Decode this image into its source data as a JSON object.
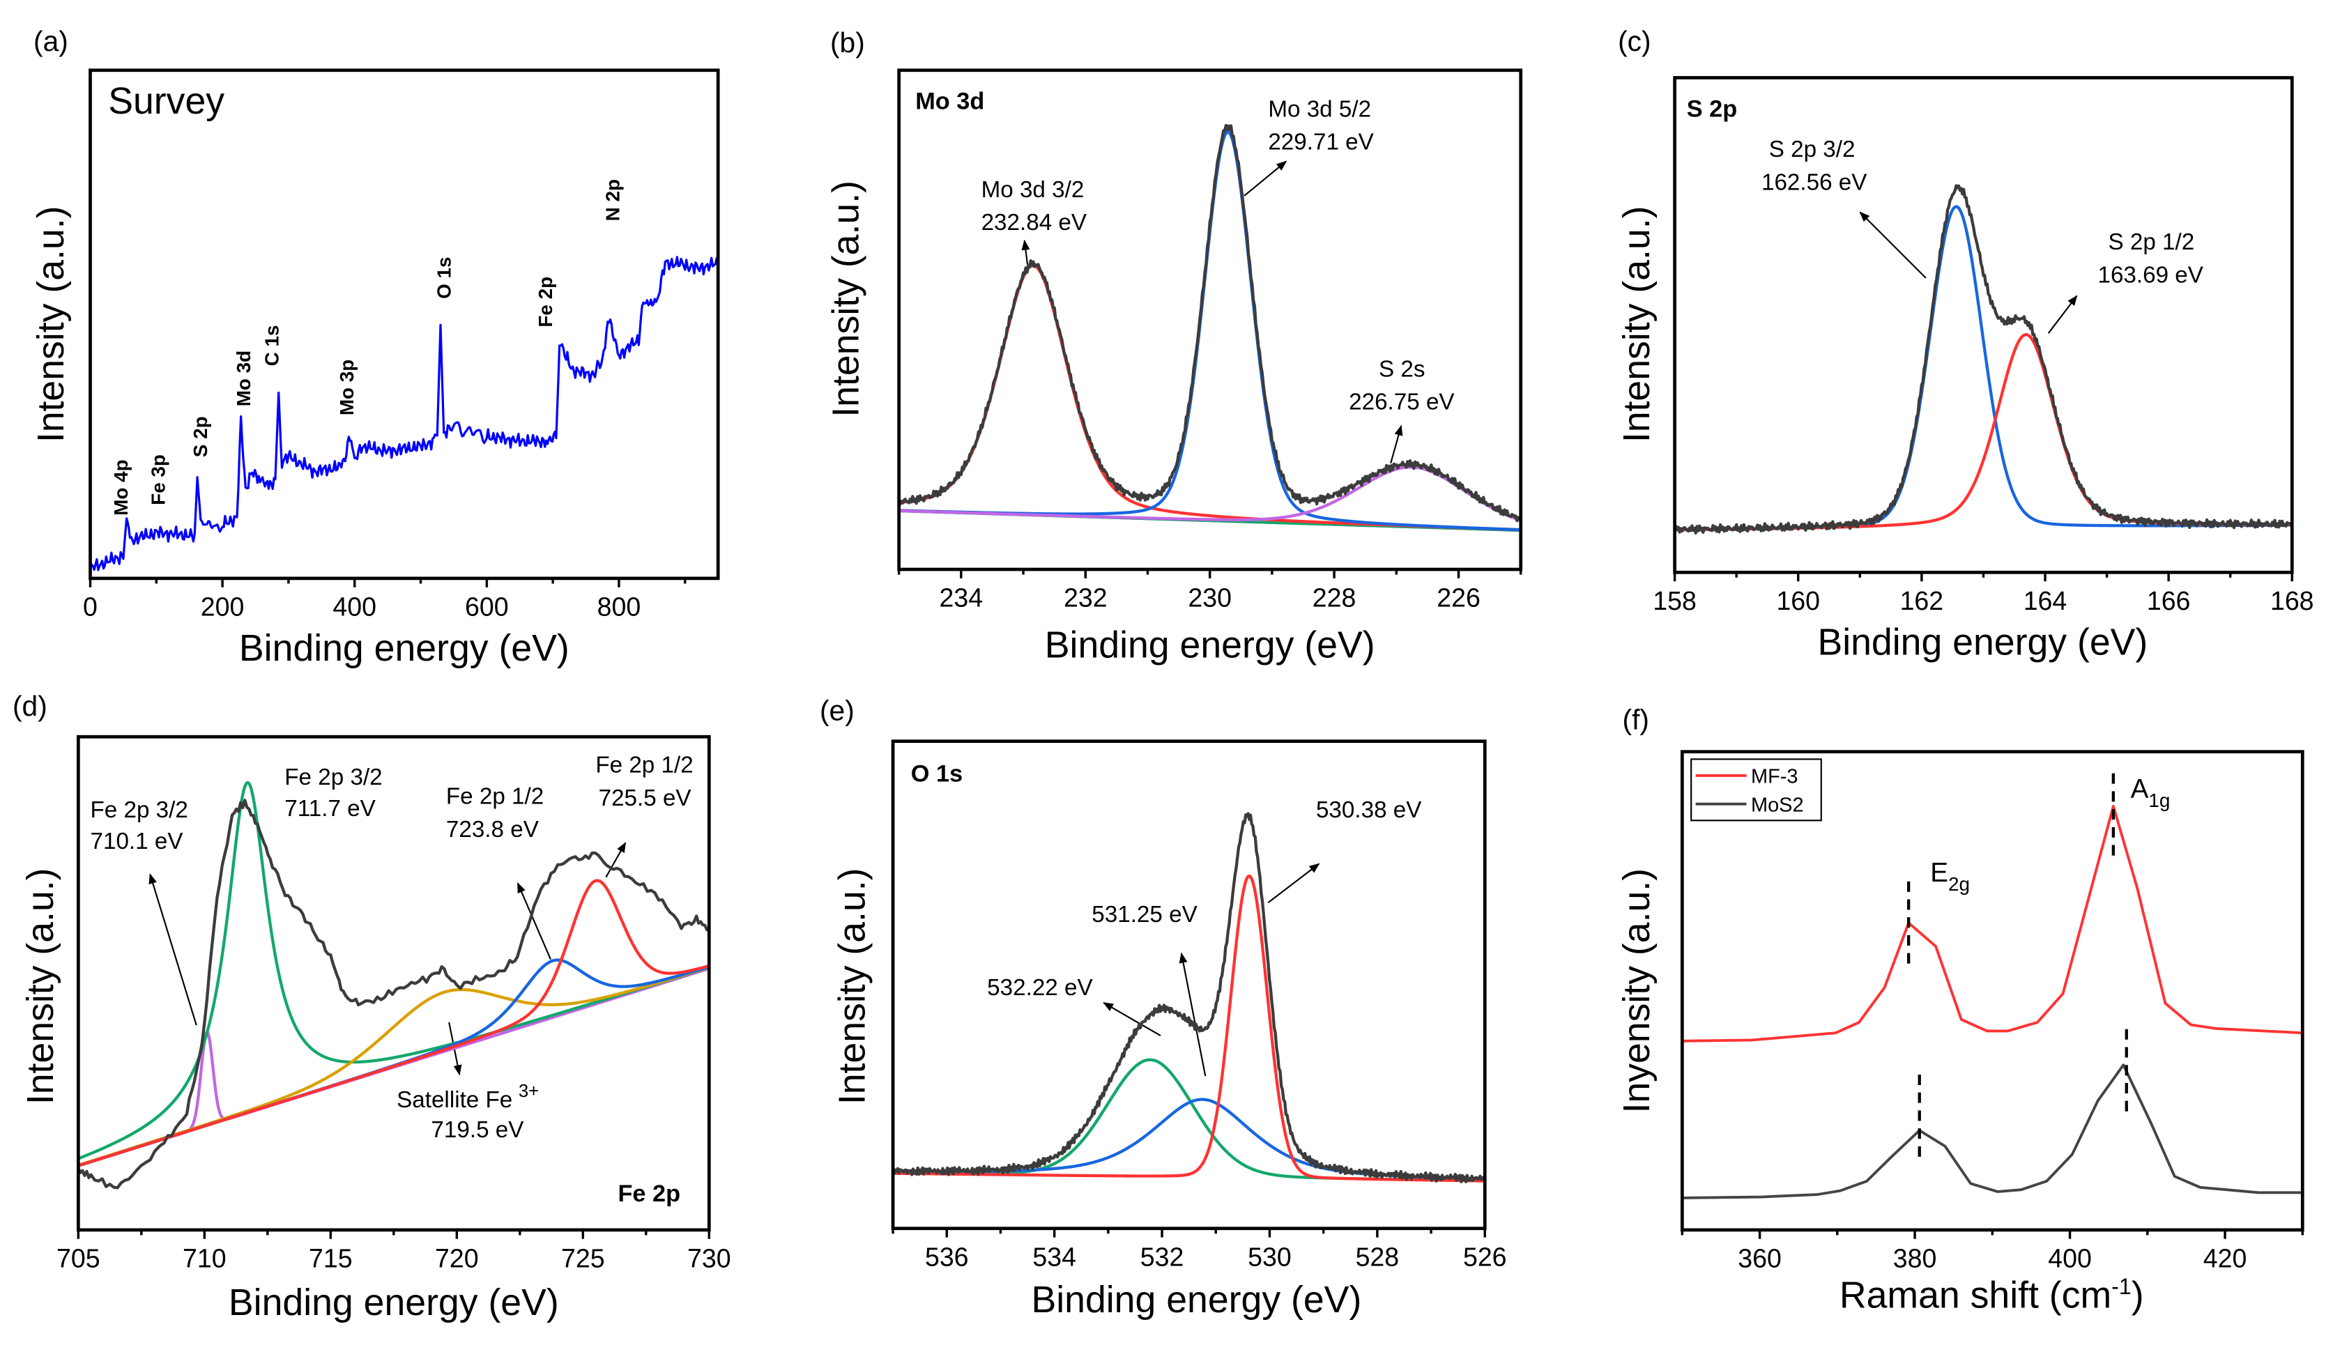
{
  "colors": {
    "envelope": "#3c3c3c",
    "red": "#ff3333",
    "blue": "#1766e0",
    "green": "#12a86a",
    "purple": "#c266e6",
    "orange": "#d9a000",
    "survey": "#0000ff",
    "mos2": "#444444"
  },
  "chart_data": [
    {
      "panel": "(a)",
      "type": "line",
      "title": "Survey",
      "xlabel": "Binding energy (eV)",
      "ylabel": "Intensity (a.u.)",
      "xlim": [
        0,
        950
      ],
      "ylim": [
        0,
        100
      ],
      "xticks": [
        0,
        200,
        400,
        600,
        800
      ],
      "xminor": 100,
      "peak_labels": [
        "Mo 4p",
        "Fe 3p",
        "S 2p",
        "Mo 3d",
        "C 1s",
        "Mo 3p",
        "O 1s",
        "Fe 2p",
        "N 2p"
      ],
      "series": [
        {
          "color": "#0000ff",
          "points": [
            [
              0,
              2
            ],
            [
              20,
              3
            ],
            [
              40,
              4
            ],
            [
              50,
              4.5
            ],
            [
              55,
              11
            ],
            [
              60,
              7.5
            ],
            [
              100,
              9
            ],
            [
              150,
              8.5
            ],
            [
              158,
              8
            ],
            [
              162,
              20
            ],
            [
              167,
              10
            ],
            [
              200,
              10.5
            ],
            [
              222,
              12
            ],
            [
              228,
              31
            ],
            [
              235,
              17
            ],
            [
              245,
              21
            ],
            [
              255,
              20
            ],
            [
              270,
              18
            ],
            [
              280,
              19
            ],
            [
              285,
              37
            ],
            [
              290,
              23
            ],
            [
              300,
              24
            ],
            [
              340,
              21
            ],
            [
              380,
              22
            ],
            [
              395,
              28
            ],
            [
              400,
              23
            ],
            [
              410,
              26
            ],
            [
              450,
              25
            ],
            [
              500,
              26
            ],
            [
              520,
              27
            ],
            [
              525,
              29
            ],
            [
              530,
              51
            ],
            [
              535,
              28
            ],
            [
              545,
              30
            ],
            [
              600,
              28
            ],
            [
              650,
              27
            ],
            [
              690,
              27
            ],
            [
              705,
              28
            ],
            [
              710,
              47
            ],
            [
              718,
              44
            ],
            [
              730,
              41
            ],
            [
              760,
              40
            ],
            [
              775,
              43
            ],
            [
              785,
              51
            ],
            [
              800,
              44
            ],
            [
              830,
              47
            ],
            [
              835,
              53
            ],
            [
              860,
              56
            ],
            [
              870,
              62
            ],
            [
              890,
              62
            ],
            [
              920,
              61
            ],
            [
              950,
              62
            ]
          ]
        }
      ]
    },
    {
      "panel": "(b)",
      "type": "line",
      "title": "Mo 3d",
      "xlabel": "Binding energy (eV)",
      "ylabel": "Intensity (a.u.)",
      "xlim": [
        235,
        225
      ],
      "ylim": [
        0,
        100
      ],
      "xticks": [
        234,
        232,
        230,
        228,
        226
      ],
      "xminor": 1,
      "background": [
        [
          235,
          11.7
        ],
        [
          225,
          7.8
        ]
      ],
      "peaks": [
        {
          "name": "Mo 3d 3/2",
          "center": 232.84,
          "height": 50,
          "fwhm": 1.3,
          "eta": 0.4,
          "color": "#ff3333"
        },
        {
          "name": "Mo 3d 5/2",
          "center": 229.71,
          "height": 78,
          "fwhm": 0.9,
          "eta": 0.2,
          "color": "#1766e0"
        },
        {
          "name": "S 2s",
          "center": 226.75,
          "height": 12,
          "fwhm": 2.1,
          "eta": 0.2,
          "color": "#c266e6"
        }
      ],
      "background_colors": [
        "#c266e6",
        "#12a86a"
      ],
      "annotations": [
        {
          "line1": "Mo 3d 3/2",
          "line2": "232.84 eV"
        },
        {
          "line1": "Mo 3d 5/2",
          "line2": "229.71 eV"
        },
        {
          "line1": "S 2s",
          "line2": "226.75 eV"
        }
      ]
    },
    {
      "panel": "(c)",
      "type": "line",
      "title": "S 2p",
      "xlabel": "Binding energy (eV)",
      "ylabel": "Intensity (a.u.)",
      "xlim": [
        158,
        168
      ],
      "ylim": [
        0,
        100
      ],
      "xticks": [
        158,
        160,
        162,
        164,
        166,
        168
      ],
      "xminor": 1,
      "background": [
        [
          158,
          8.5
        ],
        [
          168,
          9.5
        ]
      ],
      "peaks": [
        {
          "name": "S 2p 3/2",
          "center": 162.56,
          "height": 65,
          "fwhm": 1.0,
          "eta": 0.1,
          "color": "#1766e0"
        },
        {
          "name": "S 2p 1/2",
          "center": 163.69,
          "height": 39,
          "fwhm": 1.1,
          "eta": 0.3,
          "color": "#ff3333"
        }
      ],
      "annotations": [
        {
          "line1": "S 2p 3/2",
          "line2": "162.56 eV"
        },
        {
          "line1": "S 2p 1/2",
          "line2": "163.69 eV"
        }
      ]
    },
    {
      "panel": "(d)",
      "type": "line",
      "title": "Fe 2p",
      "xlabel": "Binding energy (eV)",
      "ylabel": "Intensity (a.u.)",
      "xlim": [
        705,
        730
      ],
      "ylim": [
        0,
        100
      ],
      "xticks": [
        705,
        710,
        715,
        720,
        725,
        730
      ],
      "xminor": 2.5,
      "background": [
        [
          705,
          13
        ],
        [
          730,
          53
        ]
      ],
      "peaks": [
        {
          "name": "Fe 2p 3/2",
          "center": 710.1,
          "height": 19,
          "fwhm": 0.55,
          "eta": 0,
          "color": "#c266e6"
        },
        {
          "name": "Fe 2p 3/2",
          "center": 711.7,
          "height": 67,
          "fwhm": 2.0,
          "eta": 1,
          "color": "#12a86a"
        },
        {
          "name": "Satellite Fe 3+",
          "center": 719.5,
          "height": 12,
          "fwhm": 5.5,
          "eta": 0.3,
          "color": "#d9a000"
        },
        {
          "name": "Fe 2p 1/2",
          "center": 723.8,
          "height": 11.5,
          "fwhm": 3,
          "eta": 0.5,
          "color": "#1766e0"
        },
        {
          "name": "Fe 2p 1/2",
          "center": 725.5,
          "height": 25,
          "fwhm": 2.5,
          "eta": 0.3,
          "color": "#ff3333"
        }
      ],
      "envelope_points": [
        [
          705,
          12.1
        ],
        [
          705.5,
          10.9
        ],
        [
          706.4,
          8.5
        ],
        [
          707.3,
          11.5
        ],
        [
          708.4,
          17.6
        ],
        [
          709.3,
          23.6
        ],
        [
          709.9,
          37.3
        ],
        [
          710.5,
          67.6
        ],
        [
          711.1,
          84.2
        ],
        [
          711.6,
          86.7
        ],
        [
          712.1,
          82.1
        ],
        [
          712.6,
          75.2
        ],
        [
          713.2,
          68.2
        ],
        [
          713.8,
          64.5
        ],
        [
          714.4,
          60
        ],
        [
          715,
          55.5
        ],
        [
          715.5,
          47.9
        ],
        [
          716.1,
          45.8
        ],
        [
          717,
          47
        ],
        [
          717.9,
          49.4
        ],
        [
          718.8,
          50.9
        ],
        [
          719.4,
          53
        ],
        [
          720,
          49.4
        ],
        [
          720.9,
          50.9
        ],
        [
          721.8,
          52.4
        ],
        [
          722.4,
          55.5
        ],
        [
          723.2,
          67.6
        ],
        [
          724,
          74.2
        ],
        [
          724.7,
          75.2
        ],
        [
          725.5,
          76.1
        ],
        [
          726.2,
          73.6
        ],
        [
          727.1,
          70.6
        ],
        [
          728,
          67.6
        ],
        [
          728.9,
          61.5
        ],
        [
          729.5,
          63
        ],
        [
          730,
          60.9
        ]
      ],
      "annotations": [
        {
          "line1": "Fe 2p 3/2",
          "line2": "710.1 eV"
        },
        {
          "line1": "Fe 2p 3/2",
          "line2": "711.7 eV"
        },
        {
          "line1": "Fe 2p 1/2",
          "line2": "723.8 eV"
        },
        {
          "line1": "Fe 2p 1/2",
          "line2": "725.5 eV"
        },
        {
          "line1": "Satellite Fe",
          "sup": "3+",
          "line2": "719.5 eV"
        }
      ]
    },
    {
      "panel": "(e)",
      "type": "line",
      "title": "O 1s",
      "xlabel": "Binding energy (eV)",
      "ylabel": "Intensity (a.u.)",
      "xlim": [
        537,
        526
      ],
      "ylim": [
        0,
        100
      ],
      "xticks": [
        536,
        534,
        532,
        530,
        528,
        526
      ],
      "xminor": 1,
      "background": [
        [
          537,
          11.3
        ],
        [
          526.5,
          9.8
        ]
      ],
      "peaks": [
        {
          "name": "532.22 eV",
          "center": 532.22,
          "height": 24,
          "fwhm": 1.9,
          "eta": 0.1,
          "color": "#12a86a"
        },
        {
          "name": "531.25 eV",
          "center": 531.25,
          "height": 16,
          "fwhm": 2.2,
          "eta": 0.6,
          "color": "#1766e0"
        },
        {
          "name": "530.38 eV",
          "center": 530.38,
          "height": 62,
          "fwhm": 0.8,
          "eta": 0.05,
          "color": "#ff3333"
        }
      ],
      "annotations": [
        {
          "line1": "530.38 eV"
        },
        {
          "line1": "531.25 eV"
        },
        {
          "line1": "532.22 eV"
        }
      ]
    },
    {
      "panel": "(f)",
      "type": "line",
      "xlabel": {
        "main": "Raman shift (cm",
        "sup": "-1",
        "end": ")"
      },
      "ylabel": "Inyensity (a.u.)",
      "xlim": [
        350,
        430
      ],
      "ylim": [
        0,
        100
      ],
      "xticks": [
        360,
        380,
        400,
        420
      ],
      "xminor": 10,
      "legend": {
        "placement": "top-left",
        "entries": [
          "MF-3",
          "MoS2"
        ]
      },
      "mode_labels": [
        {
          "main": "E",
          "sub": "2g"
        },
        {
          "main": "A",
          "sub": "1g"
        }
      ],
      "series": [
        {
          "name": "MF-3",
          "color": "#ff3333",
          "points": [
            [
              350,
              39.5
            ],
            [
              359,
              39.7
            ],
            [
              369.8,
              41.2
            ],
            [
              372.8,
              43.4
            ],
            [
              376.1,
              50.7
            ],
            [
              379.2,
              64.2
            ],
            [
              382.7,
              59.3
            ],
            [
              386,
              44
            ],
            [
              389.3,
              41.6
            ],
            [
              392,
              41.6
            ],
            [
              395.8,
              43.4
            ],
            [
              399.1,
              49.4
            ],
            [
              405.6,
              88.6
            ],
            [
              408.7,
              71.4
            ],
            [
              412.3,
              47.4
            ],
            [
              415.6,
              42.9
            ],
            [
              418.9,
              42.1
            ],
            [
              430,
              41.2
            ]
          ],
          "peak_markers": [
            {
              "x": 379.2,
              "y": [
                55.7,
                73
              ]
            },
            {
              "x": 405.6,
              "y": [
                78.3,
                96
              ]
            }
          ]
        },
        {
          "name": "MoS2",
          "color": "#444444",
          "points": [
            [
              350,
              6.7
            ],
            [
              360.2,
              6.9
            ],
            [
              367.4,
              7.4
            ],
            [
              370.4,
              8.2
            ],
            [
              373.8,
              10.2
            ],
            [
              377,
              15.3
            ],
            [
              380.6,
              20.8
            ],
            [
              383.9,
              17.5
            ],
            [
              387.2,
              9.7
            ],
            [
              390.7,
              8
            ],
            [
              393.7,
              8.4
            ],
            [
              397,
              10.2
            ],
            [
              400.3,
              15.8
            ],
            [
              403.6,
              27
            ],
            [
              406.9,
              34.5
            ],
            [
              410.5,
              22.2
            ],
            [
              413.5,
              11.2
            ],
            [
              416.8,
              8.9
            ],
            [
              424.3,
              7.8
            ],
            [
              430,
              7.8
            ]
          ],
          "peak_markers": [
            {
              "x": 380.6,
              "y": [
                15.3,
                33.2
              ]
            },
            {
              "x": 407.3,
              "y": [
                24.8,
                42.5
              ]
            }
          ]
        }
      ]
    }
  ]
}
